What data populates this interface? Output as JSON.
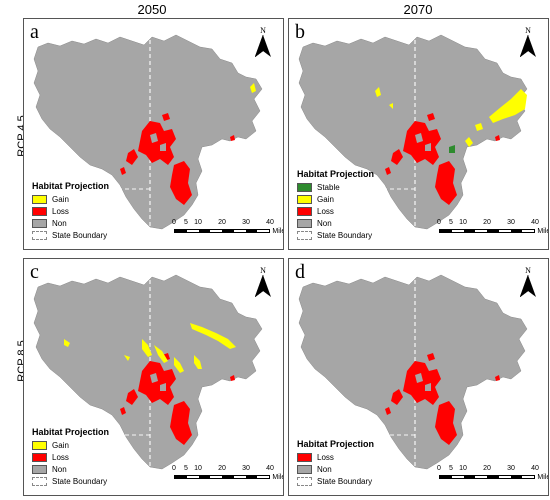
{
  "column_headers": [
    "2050",
    "2070"
  ],
  "row_headers": [
    "RCP 4.5",
    "RCP 8.5"
  ],
  "colors": {
    "region": "#a6a6a6",
    "gain": "#ffff00",
    "loss": "#ff0000",
    "stable": "#2e8b2e",
    "boundary": "#ffffff"
  },
  "panels": [
    {
      "letter": "a",
      "legend_title": "Habitat Projection",
      "legend": [
        {
          "label": "Gain",
          "color": "#ffff00"
        },
        {
          "label": "Loss",
          "color": "#ff0000"
        },
        {
          "label": "Non",
          "color": "#a6a6a6"
        },
        {
          "label": "State Boundary",
          "color": "boundary"
        }
      ],
      "north": "N",
      "scale_labels": [
        "0",
        "5",
        "10",
        "20",
        "30",
        "40"
      ],
      "scale_unit": "Miles"
    },
    {
      "letter": "b",
      "legend_title": "Habitat Projection",
      "legend": [
        {
          "label": "Stable",
          "color": "#2e8b2e"
        },
        {
          "label": "Gain",
          "color": "#ffff00"
        },
        {
          "label": "Loss",
          "color": "#ff0000"
        },
        {
          "label": "Non",
          "color": "#a6a6a6"
        },
        {
          "label": "State Boundary",
          "color": "boundary"
        }
      ],
      "north": "N",
      "scale_labels": [
        "0",
        "5",
        "10",
        "20",
        "30",
        "40"
      ],
      "scale_unit": "Miles"
    },
    {
      "letter": "c",
      "legend_title": "Habitat Projection",
      "legend": [
        {
          "label": "Gain",
          "color": "#ffff00"
        },
        {
          "label": "Loss",
          "color": "#ff0000"
        },
        {
          "label": "Non",
          "color": "#a6a6a6"
        },
        {
          "label": "State Boundary",
          "color": "boundary"
        }
      ],
      "north": "N",
      "scale_labels": [
        "0",
        "5",
        "10",
        "20",
        "30",
        "40"
      ],
      "scale_unit": "Miles"
    },
    {
      "letter": "d",
      "legend_title": "Habitat Projection",
      "legend": [
        {
          "label": "Loss",
          "color": "#ff0000"
        },
        {
          "label": "Non",
          "color": "#a6a6a6"
        },
        {
          "label": "State Boundary",
          "color": "boundary"
        }
      ],
      "north": "N",
      "scale_labels": [
        "0",
        "5",
        "10",
        "20",
        "30",
        "40"
      ],
      "scale_unit": "Miles"
    }
  ]
}
